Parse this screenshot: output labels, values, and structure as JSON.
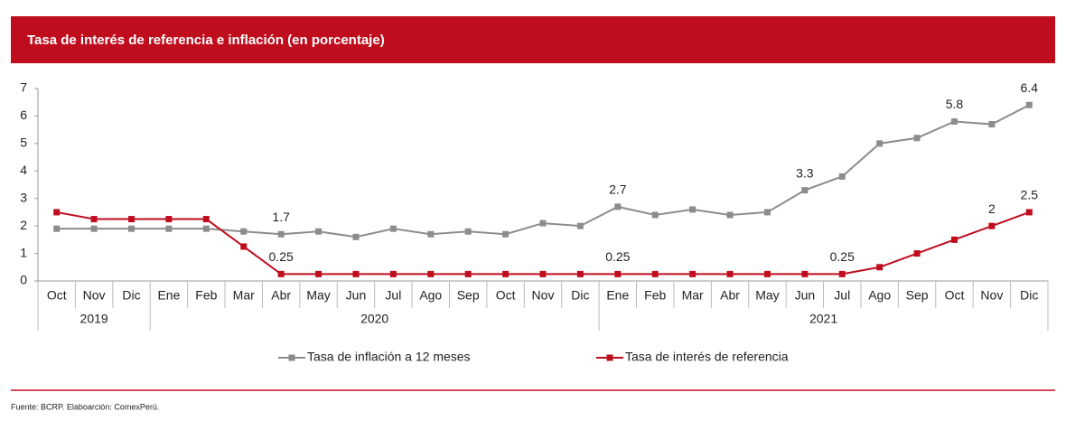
{
  "chart_data": {
    "type": "line",
    "title": "Tasa de interés de referencia e inflación (en porcentaje)",
    "categories": [
      "Oct",
      "Nov",
      "Dic",
      "Ene",
      "Feb",
      "Mar",
      "Abr",
      "May",
      "Jun",
      "Jul",
      "Ago",
      "Sep",
      "Oct",
      "Nov",
      "Dic",
      "Ene",
      "Feb",
      "Mar",
      "Abr",
      "May",
      "Jun",
      "Jul",
      "Ago",
      "Sep",
      "Oct",
      "Nov",
      "Dic"
    ],
    "groups": [
      "2019",
      "2020",
      "2021"
    ],
    "series": [
      {
        "name": "Tasa de inflación a 12 meses",
        "color": "#8c8c8c",
        "values": [
          1.9,
          1.9,
          1.9,
          1.9,
          1.9,
          1.8,
          1.7,
          1.8,
          1.6,
          1.9,
          1.7,
          1.8,
          1.7,
          2.1,
          2.0,
          2.7,
          2.4,
          2.6,
          2.4,
          2.5,
          3.3,
          3.8,
          5.0,
          5.2,
          5.8,
          5.7,
          6.4
        ],
        "value_labels": [
          null,
          null,
          null,
          null,
          null,
          null,
          "1.7",
          null,
          null,
          null,
          null,
          null,
          null,
          null,
          null,
          "2.7",
          null,
          null,
          null,
          null,
          "3.3",
          null,
          null,
          null,
          "5.8",
          null,
          "6.4"
        ]
      },
      {
        "name": "Tasa de interés de referencia",
        "color": "#c00d1e",
        "values": [
          2.5,
          2.25,
          2.25,
          2.25,
          2.25,
          1.25,
          0.25,
          0.25,
          0.25,
          0.25,
          0.25,
          0.25,
          0.25,
          0.25,
          0.25,
          0.25,
          0.25,
          0.25,
          0.25,
          0.25,
          0.25,
          0.25,
          0.5,
          1,
          1.5,
          2,
          2.5
        ],
        "value_labels": [
          null,
          null,
          null,
          null,
          null,
          null,
          "0.25",
          null,
          null,
          null,
          null,
          null,
          null,
          null,
          null,
          "0.25",
          null,
          null,
          null,
          null,
          null,
          "0.25",
          null,
          null,
          null,
          "2",
          "2.5"
        ]
      }
    ],
    "ylim": [
      0,
      7
    ],
    "yticks": [
      0,
      1,
      2,
      3,
      4,
      5,
      6,
      7
    ],
    "grid": false,
    "source": "Fuente: BCRP. Elaboarción: ComexPerú."
  }
}
